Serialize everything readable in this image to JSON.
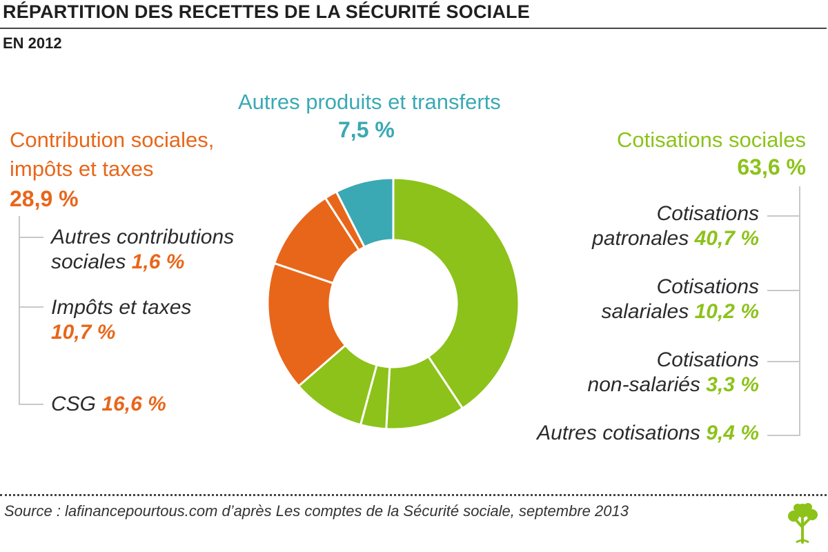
{
  "header": {
    "title": "RÉPARTITION DES RECETTES DE LA SÉCURITÉ SOCIALE",
    "subtitle": "EN 2012"
  },
  "groups": {
    "contributions": {
      "label_line1": "Contribution sociales,",
      "label_line2": "impôts et taxes",
      "value": "28,9 %",
      "color": "#e8661a",
      "items": [
        {
          "label_line1": "Autres contributions",
          "label_line2": "sociales",
          "value": "1,6 %"
        },
        {
          "label_line1": "Impôts et taxes",
          "value": "10,7 %"
        },
        {
          "label_line1": "CSG",
          "value": "16,6 %"
        }
      ]
    },
    "autres": {
      "label": "Autres produits et transferts",
      "value": "7,5 %",
      "color": "#3aa9b4"
    },
    "cotisations": {
      "label": "Cotisations sociales",
      "value": "63,6 %",
      "color": "#8cc21a",
      "items": [
        {
          "label_line1": "Cotisations",
          "label_line2": "patronales",
          "value": "40,7 %"
        },
        {
          "label_line1": "Cotisations",
          "label_line2": "salariales",
          "value": "10,2 %"
        },
        {
          "label_line1": "Cotisations",
          "label_line2": "non-salariés",
          "value": "3,3 %"
        },
        {
          "label_line1": "Autres cotisations",
          "value": "9,4 %"
        }
      ]
    }
  },
  "chart_data": {
    "type": "pie",
    "donut": true,
    "start": "top",
    "direction": "clockwise",
    "slices": [
      {
        "label": "Cotisations patronales",
        "value": 40.7,
        "color": "#8cc21a"
      },
      {
        "label": "Cotisations salariales",
        "value": 10.2,
        "color": "#8cc21a"
      },
      {
        "label": "Cotisations non-salariés",
        "value": 3.3,
        "color": "#8cc21a"
      },
      {
        "label": "Autres cotisations",
        "value": 9.4,
        "color": "#8cc21a"
      },
      {
        "label": "CSG",
        "value": 16.6,
        "color": "#e8661a"
      },
      {
        "label": "Impôts et taxes",
        "value": 10.7,
        "color": "#e8661a"
      },
      {
        "label": "Autres contributions sociales",
        "value": 1.6,
        "color": "#e8661a"
      },
      {
        "label": "Autres produits et transferts",
        "value": 7.5,
        "color": "#3aa9b4"
      }
    ]
  },
  "footer": {
    "source": "Source : lafinancepourtous.com d’après Les comptes de la Sécurité sociale, septembre 2013",
    "logo_icon": "tree-icon"
  }
}
